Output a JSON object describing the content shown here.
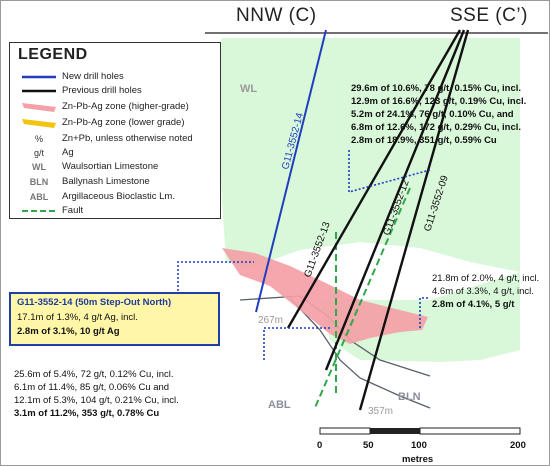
{
  "header": {
    "left": "NNW (C)",
    "right": "SSE (C’)"
  },
  "legend": {
    "title": "LEGEND",
    "items": [
      {
        "symbol": "line-blue",
        "label": "New drill holes"
      },
      {
        "symbol": "line-black",
        "label": "Previous drill holes"
      },
      {
        "symbol": "zone-pink",
        "label": "Zn-Pb-Ag zone (higher-grade)"
      },
      {
        "symbol": "zone-yellow",
        "label": "Zn-Pb-Ag zone (lower grade)"
      },
      {
        "symbol": "%",
        "label": "Zn+Pb, unless otherwise noted"
      },
      {
        "symbol": "g/t",
        "label": "Ag"
      },
      {
        "symbol": "WL",
        "label": "Waulsortian Limestone"
      },
      {
        "symbol": "BLN",
        "label": "Ballynash Limestone"
      },
      {
        "symbol": "ABL",
        "label": "Argillaceous Bioclastic Lm."
      },
      {
        "symbol": "line-green-dashed",
        "label": "Fault"
      }
    ]
  },
  "units": {
    "wl": "WL",
    "bln": "BLN",
    "abl": "ABL"
  },
  "holes": {
    "h14": "G11-3552-14",
    "h13": "G11-3552-13",
    "h12": "G11-3552-12",
    "h09": "G11-3552-09"
  },
  "depths": {
    "d267": "267m",
    "d357": "357m"
  },
  "intercepts_top": [
    "29.6m of 10.6%, 78 g/t, 0.15% Cu, incl.",
    "12.9m of 16.6%, 123 g/t, 0.19% Cu, incl.",
    "5.2m of 24.1%, 76 g/t, 0.10% Cu, and",
    "6.8m of 12.6%, 172 g/t, 0.29% Cu, incl.",
    "2.8m of 18.9%, 351 g/t, 0.59% Cu"
  ],
  "intercepts_right": [
    "21.8m of 2.0%, 4 g/t, incl.",
    "4.6m of 3.3%, 4 g/t, incl.",
    "2.8m of 4.1%, 5 g/t"
  ],
  "intercepts_bottom": [
    "25.6m of 5.4%, 72 g/t, 0.12% Cu, incl.",
    "6.1m of 11.4%, 85 g/t, 0.06% Cu and",
    "12.1m of 5.3%, 104 g/t, 0.21% Cu, incl.",
    "3.1m of 11.2%, 353 g/t, 0.78% Cu"
  ],
  "stepout": {
    "title": "G11-3552-14 (50m Step-Out North)",
    "line1": "17.1m of 1.3%, 4 g/t Ag, incl.",
    "line2": "2.8m of 3.1%, 10 g/t Ag"
  },
  "scale": {
    "ticks": [
      "0",
      "50",
      "100",
      "200"
    ],
    "unit": "metres"
  },
  "colors": {
    "wl_fill": "#d9f7d9",
    "new_hole": "#1f3fbf",
    "prev_hole": "#111111",
    "zone_high": "#f4a0a6",
    "zone_low": "#f2c40c",
    "fault": "#2ea84a",
    "leader": "#1f3fbf"
  }
}
